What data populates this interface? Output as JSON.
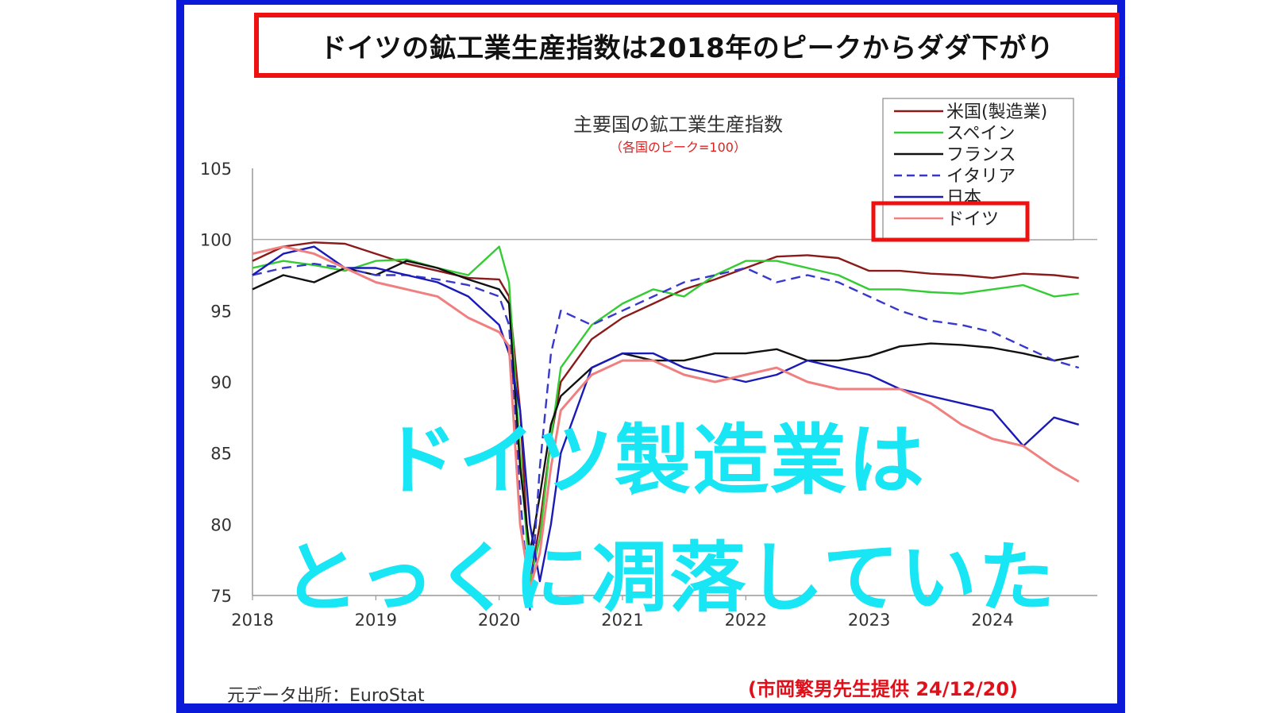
{
  "headline": "ドイツの鉱工業生産指数は2018年のピークからダダ下がり",
  "overlay": {
    "line1": "ドイツ製造業は",
    "line2": "とっくに凋落していた"
  },
  "source": "元データ出所：EuroStat",
  "credit": "(市岡繁男先生提供 24/12/20)",
  "colors": {
    "frame": "#0a1ad8",
    "highlight_box": "#ee1111",
    "overlay_text": "#19e6f5"
  },
  "chart_data": {
    "type": "line",
    "title": "主要国の鉱工業生産指数",
    "subtitle": "（各国のピーク=100）",
    "xlabel": "",
    "ylabel": "",
    "xlim": [
      2018,
      2024.85
    ],
    "ylim": [
      75,
      105
    ],
    "x_ticks": [
      "2018",
      "2019",
      "2020",
      "2021",
      "2022",
      "2023",
      "2024"
    ],
    "y_ticks": [
      "105",
      "100",
      "95",
      "90",
      "85",
      "80",
      "75"
    ],
    "grid": false,
    "legend_position": "top-right",
    "highlight_series": "ドイツ",
    "x": [
      2018.0,
      2018.25,
      2018.5,
      2018.75,
      2019.0,
      2019.25,
      2019.5,
      2019.75,
      2020.0,
      2020.08,
      2020.17,
      2020.25,
      2020.33,
      2020.42,
      2020.5,
      2020.75,
      2021.0,
      2021.25,
      2021.5,
      2021.75,
      2022.0,
      2022.25,
      2022.5,
      2022.75,
      2023.0,
      2023.25,
      2023.5,
      2023.75,
      2024.0,
      2024.25,
      2024.5,
      2024.7
    ],
    "series": [
      {
        "name": "米国(製造業)",
        "color": "#8b1a1a",
        "dash": false,
        "values": [
          98.5,
          99.5,
          99.8,
          99.7,
          99.0,
          98.3,
          97.8,
          97.3,
          97.2,
          96.0,
          88.0,
          76.0,
          80.0,
          86.0,
          90.0,
          93.0,
          94.5,
          95.5,
          96.5,
          97.2,
          98.0,
          98.8,
          98.9,
          98.7,
          97.8,
          97.8,
          97.6,
          97.5,
          97.3,
          97.6,
          97.5,
          97.3
        ]
      },
      {
        "name": "スペイン",
        "color": "#33cc33",
        "dash": false,
        "values": [
          98.0,
          98.5,
          98.2,
          97.8,
          98.5,
          98.6,
          98.0,
          97.5,
          99.5,
          97.0,
          85.0,
          76.0,
          79.0,
          86.0,
          91.0,
          94.0,
          95.5,
          96.5,
          96.0,
          97.5,
          98.5,
          98.5,
          98.0,
          97.5,
          96.5,
          96.5,
          96.3,
          96.2,
          96.5,
          96.8,
          96.0,
          96.2
        ]
      },
      {
        "name": "フランス",
        "color": "#111111",
        "dash": false,
        "values": [
          96.5,
          97.5,
          97.0,
          98.0,
          97.5,
          98.5,
          98.0,
          97.2,
          96.5,
          95.5,
          84.0,
          78.0,
          82.0,
          87.0,
          89.0,
          91.0,
          92.0,
          91.5,
          91.5,
          92.0,
          92.0,
          92.3,
          91.5,
          91.5,
          91.8,
          92.5,
          92.7,
          92.6,
          92.4,
          92.0,
          91.5,
          91.8
        ]
      },
      {
        "name": "イタリア",
        "color": "#3838cc",
        "dash": true,
        "values": [
          97.5,
          98.0,
          98.3,
          98.0,
          97.5,
          97.5,
          97.2,
          96.8,
          96.0,
          94.0,
          82.0,
          74.0,
          84.0,
          92.0,
          95.0,
          94.0,
          95.0,
          96.0,
          97.0,
          97.5,
          98.0,
          97.0,
          97.5,
          97.0,
          96.0,
          95.0,
          94.3,
          94.0,
          93.5,
          92.5,
          91.5,
          91.0
        ]
      },
      {
        "name": "日本",
        "color": "#1a1ab8",
        "dash": false,
        "values": [
          97.5,
          99.0,
          99.5,
          98.0,
          98.0,
          97.5,
          97.0,
          96.0,
          94.0,
          92.0,
          88.0,
          80.0,
          76.0,
          80.0,
          85.0,
          91.0,
          92.0,
          92.0,
          91.0,
          90.5,
          90.0,
          90.5,
          91.5,
          91.0,
          90.5,
          89.5,
          89.0,
          88.5,
          88.0,
          85.5,
          87.5,
          87.0
        ]
      },
      {
        "name": "ドイツ",
        "color": "#f08080",
        "dash": false,
        "values": [
          99.0,
          99.5,
          99.0,
          98.0,
          97.0,
          96.5,
          96.0,
          94.5,
          93.5,
          92.5,
          80.0,
          75.5,
          78.0,
          84.0,
          88.0,
          90.5,
          91.5,
          91.5,
          90.5,
          90.0,
          90.5,
          91.0,
          90.0,
          89.5,
          89.5,
          89.5,
          88.5,
          87.0,
          86.0,
          85.5,
          84.0,
          83.0
        ]
      }
    ]
  }
}
